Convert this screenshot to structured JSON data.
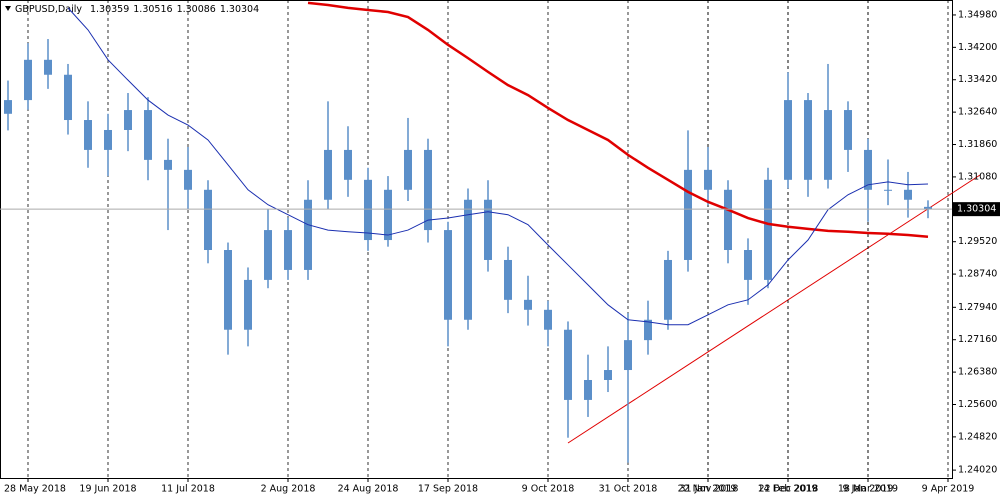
{
  "chart_data": {
    "type": "candlestick",
    "title": "GBPUSD,Daily",
    "categories": [
      null,
      "28 May 2018",
      null,
      null,
      null,
      "19 Jun 2018",
      null,
      null,
      null,
      "11 Jul 2018",
      null,
      null,
      null,
      null,
      "2 Aug 2018",
      null,
      null,
      null,
      "24 Aug 2018",
      null,
      null,
      null,
      "17 Sep 2018",
      null,
      null,
      null,
      null,
      "9 Oct 2018",
      null,
      null,
      null,
      "31 Oct 2018",
      null,
      null,
      null,
      "22 Nov 2018",
      null,
      null,
      null,
      "14 Dec 2018",
      null,
      null,
      null,
      "9 Jan 2019",
      null,
      null,
      null
    ],
    "extra_categories": [
      "31 Jan 2019",
      "22 Feb 2019",
      "18 Mar 2019",
      "9 Apr 2019"
    ],
    "candle_color": "#5b8fc9",
    "candles": [
      {
        "open": 1.326,
        "high": 1.334,
        "low": 1.322,
        "close": 1.3293
      },
      {
        "open": 1.3293,
        "high": 1.343,
        "low": 1.327,
        "close": 1.339
      },
      {
        "open": 1.339,
        "high": 1.344,
        "low": 1.332,
        "close": 1.3354
      },
      {
        "open": 1.3354,
        "high": 1.338,
        "low": 1.321,
        "close": 1.3245
      },
      {
        "open": 1.3245,
        "high": 1.329,
        "low": 1.313,
        "close": 1.3173
      },
      {
        "open": 1.3173,
        "high": 1.326,
        "low": 1.311,
        "close": 1.3221
      },
      {
        "open": 1.3221,
        "high": 1.331,
        "low": 1.317,
        "close": 1.3269
      },
      {
        "open": 1.3269,
        "high": 1.33,
        "low": 1.31,
        "close": 1.3149
      },
      {
        "open": 1.3149,
        "high": 1.32,
        "low": 1.298,
        "close": 1.3125
      },
      {
        "open": 1.3125,
        "high": 1.318,
        "low": 1.303,
        "close": 1.3077
      },
      {
        "open": 1.3077,
        "high": 1.31,
        "low": 1.29,
        "close": 1.2932
      },
      {
        "open": 1.2932,
        "high": 1.295,
        "low": 1.268,
        "close": 1.274
      },
      {
        "open": 1.274,
        "high": 1.289,
        "low": 1.27,
        "close": 1.286
      },
      {
        "open": 1.286,
        "high": 1.303,
        "low": 1.284,
        "close": 1.298
      },
      {
        "open": 1.298,
        "high": 1.301,
        "low": 1.286,
        "close": 1.2884
      },
      {
        "open": 1.2884,
        "high": 1.31,
        "low": 1.286,
        "close": 1.3053
      },
      {
        "open": 1.3053,
        "high": 1.329,
        "low": 1.303,
        "close": 1.3173
      },
      {
        "open": 1.3173,
        "high": 1.323,
        "low": 1.306,
        "close": 1.3101
      },
      {
        "open": 1.3101,
        "high": 1.313,
        "low": 1.293,
        "close": 1.2956
      },
      {
        "open": 1.2956,
        "high": 1.311,
        "low": 1.294,
        "close": 1.3077
      },
      {
        "open": 1.3077,
        "high": 1.325,
        "low": 1.305,
        "close": 1.3173
      },
      {
        "open": 1.3173,
        "high": 1.32,
        "low": 1.295,
        "close": 1.298
      },
      {
        "open": 1.298,
        "high": 1.3,
        "low": 1.27,
        "close": 1.2764
      },
      {
        "open": 1.2764,
        "high": 1.308,
        "low": 1.274,
        "close": 1.3053
      },
      {
        "open": 1.3053,
        "high": 1.31,
        "low": 1.288,
        "close": 1.2908
      },
      {
        "open": 1.2908,
        "high": 1.294,
        "low": 1.278,
        "close": 1.2812
      },
      {
        "open": 1.2812,
        "high": 1.287,
        "low": 1.275,
        "close": 1.2788
      },
      {
        "open": 1.2788,
        "high": 1.281,
        "low": 1.27,
        "close": 1.274
      },
      {
        "open": 1.274,
        "high": 1.276,
        "low": 1.248,
        "close": 1.2571
      },
      {
        "open": 1.2571,
        "high": 1.268,
        "low": 1.253,
        "close": 1.2619
      },
      {
        "open": 1.2619,
        "high": 1.27,
        "low": 1.259,
        "close": 1.2643
      },
      {
        "open": 1.2643,
        "high": 1.278,
        "low": 1.242,
        "close": 1.2715
      },
      {
        "open": 1.2715,
        "high": 1.281,
        "low": 1.268,
        "close": 1.2764
      },
      {
        "open": 1.2764,
        "high": 1.293,
        "low": 1.274,
        "close": 1.2908
      },
      {
        "open": 1.2908,
        "high": 1.322,
        "low": 1.288,
        "close": 1.3125
      },
      {
        "open": 1.3125,
        "high": 1.318,
        "low": 1.304,
        "close": 1.3077
      },
      {
        "open": 1.3077,
        "high": 1.31,
        "low": 1.29,
        "close": 1.2932
      },
      {
        "open": 1.2932,
        "high": 1.296,
        "low": 1.28,
        "close": 1.286
      },
      {
        "open": 1.286,
        "high": 1.313,
        "low": 1.284,
        "close": 1.3101
      },
      {
        "open": 1.3101,
        "high": 1.336,
        "low": 1.308,
        "close": 1.3293
      },
      {
        "open": 1.3293,
        "high": 1.331,
        "low": 1.306,
        "close": 1.3101
      },
      {
        "open": 1.3101,
        "high": 1.338,
        "low": 1.308,
        "close": 1.3269
      },
      {
        "open": 1.3269,
        "high": 1.329,
        "low": 1.312,
        "close": 1.3173
      },
      {
        "open": 1.3173,
        "high": 1.32,
        "low": 1.3,
        "close": 1.3077
      },
      {
        "open": 1.3077,
        "high": 1.315,
        "low": 1.304,
        "close": 1.3077
      },
      {
        "open": 1.3077,
        "high": 1.312,
        "low": 1.301,
        "close": 1.3053
      },
      {
        "open": 1.30359,
        "high": 1.30516,
        "low": 1.30086,
        "close": 1.30304
      }
    ],
    "series": [
      {
        "color": "#e00000",
        "width": 2.5,
        "values": [
          null,
          null,
          null,
          null,
          null,
          null,
          null,
          null,
          null,
          null,
          null,
          null,
          null,
          null,
          null,
          1.3527,
          1.3522,
          1.3515,
          1.351,
          1.3505,
          1.3493,
          1.3462,
          1.3426,
          1.3394,
          1.3361,
          1.3329,
          1.3305,
          1.3274,
          1.3245,
          1.3221,
          1.3197,
          1.3161,
          1.313,
          1.3101,
          1.3072,
          1.3048,
          1.3029,
          1.3009,
          1.2995,
          1.2988,
          1.2983,
          1.2978,
          1.2976,
          1.2973,
          1.2971,
          1.2968,
          1.2964
        ]
      },
      {
        "color": "#1a2fb0",
        "width": 1,
        "values": [
          null,
          null,
          null,
          1.3515,
          1.3462,
          1.339,
          1.3341,
          1.3293,
          1.3257,
          1.3233,
          1.3197,
          1.3137,
          1.3077,
          1.3041,
          1.3017,
          1.2993,
          1.298,
          1.2976,
          1.2973,
          1.2968,
          1.298,
          1.3004,
          1.3009,
          1.3017,
          1.3024,
          1.3017,
          1.2993,
          1.2944,
          1.2896,
          1.2848,
          1.28,
          1.2764,
          1.2759,
          1.2752,
          1.2752,
          1.2776,
          1.28,
          1.2812,
          1.2848,
          1.2908,
          1.2956,
          1.3029,
          1.3065,
          1.3089,
          1.3096,
          1.3089,
          1.3091
        ]
      }
    ],
    "ylim": [
      1.2383,
      1.3534
    ],
    "yticks": [
      {
        "value": 1.3498,
        "label": "1.34980"
      },
      {
        "value": 1.342,
        "label": "1.34200"
      },
      {
        "value": 1.3342,
        "label": "1.33420"
      },
      {
        "value": 1.3264,
        "label": "1.32640"
      },
      {
        "value": 1.3186,
        "label": "1.31860"
      },
      {
        "value": 1.3108,
        "label": "1.31080"
      },
      {
        "value": 1.2952,
        "label": "1.29520"
      },
      {
        "value": 1.2874,
        "label": "1.28740"
      },
      {
        "value": 1.2794,
        "label": "1.27940"
      },
      {
        "value": 1.2716,
        "label": "1.27160"
      },
      {
        "value": 1.2638,
        "label": "1.26380"
      },
      {
        "value": 1.256,
        "label": "1.25600"
      },
      {
        "value": 1.2482,
        "label": "1.24820"
      },
      {
        "value": 1.2402,
        "label": "1.24020"
      }
    ],
    "grid": true
  }
}
